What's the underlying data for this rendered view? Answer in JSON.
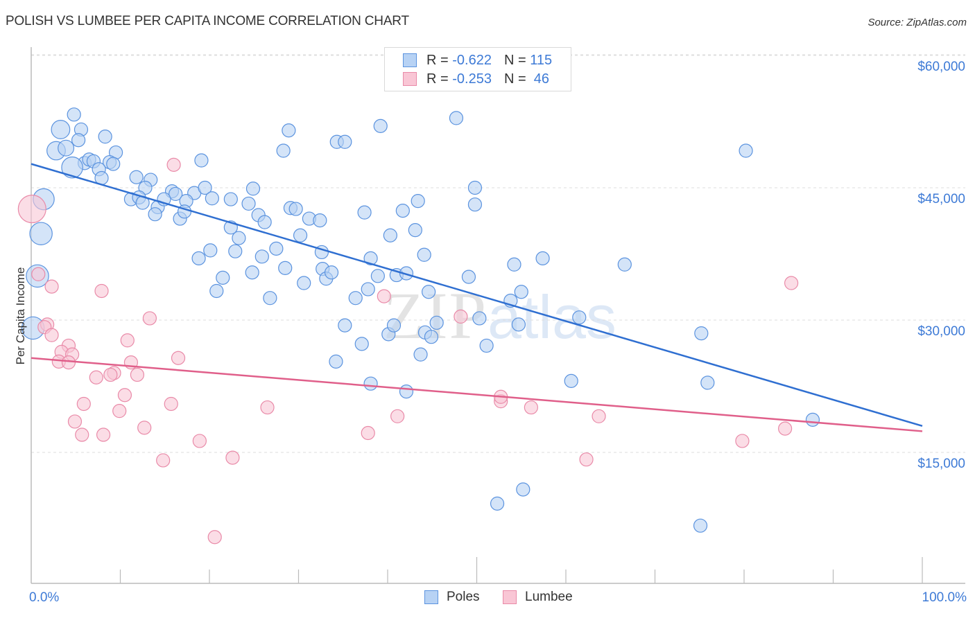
{
  "title": "POLISH VS LUMBEE PER CAPITA INCOME CORRELATION CHART",
  "source": "Source: ZipAtlas.com",
  "watermark": {
    "zip": "ZIP",
    "atlas": "atlas"
  },
  "colors": {
    "poles_fill": "#b7d2f4",
    "poles_stroke": "#5b93df",
    "poles_line": "#2f6fd1",
    "lumbee_fill": "#f9c6d5",
    "lumbee_stroke": "#e98aa8",
    "lumbee_line": "#e05f8a",
    "tick_label": "#3d7ad6"
  },
  "stats_legend": [
    {
      "series": "Poles",
      "r_label": "R =",
      "r_value": "-0.622",
      "n_label": "N =",
      "n_value": "115"
    },
    {
      "series": "Lumbee",
      "r_label": "R =",
      "r_value": "-0.253",
      "n_label": "N =",
      "n_value": " 46"
    }
  ],
  "chart_data": {
    "type": "scatter",
    "title": "POLISH VS LUMBEE PER CAPITA INCOME CORRELATION CHART",
    "xlabel": "",
    "ylabel": "Per Capita Income",
    "xlim": [
      0,
      100
    ],
    "ylim": [
      2000,
      62500
    ],
    "x_tick_labels": [
      {
        "value": 0,
        "label": "0.0%"
      },
      {
        "value": 100,
        "label": "100.0%"
      }
    ],
    "x_minor_ticks": [
      10,
      20,
      30,
      40,
      50,
      60,
      70,
      80,
      90,
      100
    ],
    "y_ticks": [
      {
        "value": 60000,
        "label": "$60,000"
      },
      {
        "value": 45000,
        "label": "$45,000"
      },
      {
        "value": 30000,
        "label": "$30,000"
      },
      {
        "value": 15000,
        "label": "$15,000"
      }
    ],
    "grid": true,
    "legend_position": "bottom-center",
    "series": [
      {
        "name": "Poles",
        "r": -0.622,
        "n": 115,
        "trend": {
          "x0": 0,
          "y0": 47700,
          "x1": 100,
          "y1": 18000
        },
        "points": [
          [
            4.8,
            53.3,
            1
          ],
          [
            3.3,
            51.6,
            1.4
          ],
          [
            5.6,
            51.6,
            1
          ],
          [
            2.8,
            49.2,
            1.4
          ],
          [
            3.9,
            49.5,
            1.2
          ],
          [
            5.3,
            50.4,
            1
          ],
          [
            8.3,
            50.8,
            1
          ],
          [
            6,
            47.8,
            1
          ],
          [
            4.6,
            47.3,
            1.6
          ],
          [
            6.5,
            48.2,
            1
          ],
          [
            7,
            48,
            1
          ],
          [
            9.5,
            49,
            1
          ],
          [
            8.8,
            47.9,
            1
          ],
          [
            7.6,
            47.1,
            1
          ],
          [
            9.2,
            47.7,
            1
          ],
          [
            7.9,
            46.1,
            1
          ],
          [
            11.8,
            46.2,
            1
          ],
          [
            13.4,
            45.9,
            1
          ],
          [
            12.8,
            45,
            1
          ],
          [
            11.2,
            43.7,
            1
          ],
          [
            12.1,
            43.9,
            1
          ],
          [
            12.5,
            43.3,
            1
          ],
          [
            15.8,
            44.6,
            1
          ],
          [
            16.2,
            44.3,
            1
          ],
          [
            18.3,
            44.4,
            1
          ],
          [
            14.2,
            42.8,
            1
          ],
          [
            14.9,
            43.7,
            1
          ],
          [
            17.4,
            43.5,
            1
          ],
          [
            13.9,
            42,
            1
          ],
          [
            16.7,
            41.5,
            1
          ],
          [
            17.2,
            42.3,
            1
          ],
          [
            19.1,
            48.1,
            1
          ],
          [
            19.5,
            45,
            1
          ],
          [
            20.3,
            43.8,
            1
          ],
          [
            22.4,
            43.7,
            1
          ],
          [
            24.4,
            43.2,
            1
          ],
          [
            24.9,
            44.9,
            1
          ],
          [
            25.5,
            41.9,
            1
          ],
          [
            26.2,
            41.1,
            1
          ],
          [
            22.4,
            40.5,
            1
          ],
          [
            23.3,
            39.3,
            1
          ],
          [
            20.1,
            37.9,
            1
          ],
          [
            18.8,
            37,
            1
          ],
          [
            21.5,
            34.8,
            1
          ],
          [
            20.8,
            33.3,
            1
          ],
          [
            24.8,
            35.4,
            1
          ],
          [
            22.9,
            37.8,
            1
          ],
          [
            25.9,
            37.2,
            1
          ],
          [
            27.5,
            38.1,
            1
          ],
          [
            28.5,
            35.9,
            1
          ],
          [
            26.8,
            32.5,
            1
          ],
          [
            28.3,
            49.2,
            1
          ],
          [
            28.9,
            51.5,
            1
          ],
          [
            29.1,
            42.7,
            1
          ],
          [
            29.7,
            42.6,
            1
          ],
          [
            30.2,
            39.6,
            1
          ],
          [
            30.6,
            34.2,
            1
          ],
          [
            31.2,
            41.5,
            1
          ],
          [
            32.4,
            41.3,
            1
          ],
          [
            32.6,
            37.7,
            1
          ],
          [
            32.7,
            35.8,
            1
          ],
          [
            33.1,
            34.7,
            1
          ],
          [
            33.7,
            35.4,
            1
          ],
          [
            34.3,
            50.2,
            1
          ],
          [
            35.2,
            50.2,
            1
          ],
          [
            36.4,
            32.5,
            1
          ],
          [
            37.4,
            42.2,
            1
          ],
          [
            37.8,
            33.5,
            1
          ],
          [
            38.1,
            37,
            1
          ],
          [
            38.9,
            35,
            1
          ],
          [
            39.2,
            52,
            1
          ],
          [
            35.2,
            29.4,
            1
          ],
          [
            34.2,
            25.3,
            1
          ],
          [
            37.1,
            27.3,
            1
          ],
          [
            38.1,
            22.8,
            1
          ],
          [
            40.1,
            28.4,
            1
          ],
          [
            40.7,
            29.4,
            1
          ],
          [
            41,
            35.1,
            1
          ],
          [
            40.3,
            39.6,
            1
          ],
          [
            41.7,
            42.4,
            1
          ],
          [
            42.1,
            35.3,
            1
          ],
          [
            43.1,
            40.2,
            1
          ],
          [
            43.4,
            43.5,
            1
          ],
          [
            44.1,
            37.4,
            1
          ],
          [
            44.6,
            33.2,
            1
          ],
          [
            44.2,
            28.6,
            1
          ],
          [
            43.7,
            26.1,
            1
          ],
          [
            44.9,
            28.1,
            1
          ],
          [
            42.1,
            21.9,
            1
          ],
          [
            45.5,
            29.7,
            1
          ],
          [
            47.7,
            52.9,
            1
          ],
          [
            49.1,
            34.9,
            1
          ],
          [
            49.8,
            43.1,
            1
          ],
          [
            49.8,
            45,
            1
          ],
          [
            50.3,
            30.2,
            1
          ],
          [
            51.1,
            27.1,
            1
          ],
          [
            53.8,
            32.2,
            1
          ],
          [
            54.2,
            36.3,
            1
          ],
          [
            54.7,
            29.5,
            1
          ],
          [
            55,
            33.2,
            1
          ],
          [
            57.4,
            37,
            1
          ],
          [
            60.6,
            23.1,
            1
          ],
          [
            61.5,
            30.3,
            1
          ],
          [
            66.6,
            36.3,
            1
          ],
          [
            75.2,
            28.5,
            1
          ],
          [
            75.9,
            22.9,
            1
          ],
          [
            80.2,
            49.2,
            1
          ],
          [
            87.7,
            18.7,
            1
          ],
          [
            52.3,
            9.2,
            1
          ],
          [
            55.2,
            10.8,
            1
          ],
          [
            75.1,
            6.7,
            1
          ],
          [
            1.4,
            43.7,
            1.6
          ],
          [
            1.1,
            39.8,
            1.7
          ],
          [
            0.7,
            35,
            1.7
          ],
          [
            0.2,
            29.1,
            1.7
          ]
        ]
      },
      {
        "name": "Lumbee",
        "r": -0.253,
        "n": 46,
        "trend": {
          "x0": 0,
          "y0": 25700,
          "x1": 100,
          "y1": 17400
        },
        "points": [
          [
            0.1,
            42.6,
            2.1
          ],
          [
            0.8,
            35.2,
            1
          ],
          [
            2.3,
            33.8,
            1
          ],
          [
            7.9,
            33.3,
            1
          ],
          [
            16,
            47.6,
            1
          ],
          [
            13.3,
            30.2,
            1
          ],
          [
            1.8,
            29.5,
            1
          ],
          [
            1.5,
            29.2,
            1
          ],
          [
            2.3,
            28.3,
            1
          ],
          [
            4.2,
            27.1,
            1
          ],
          [
            3.4,
            26.4,
            1
          ],
          [
            3.1,
            25.3,
            1
          ],
          [
            4.6,
            26.1,
            1
          ],
          [
            4.2,
            25.2,
            1
          ],
          [
            10.8,
            27.7,
            1
          ],
          [
            11.2,
            25.2,
            1
          ],
          [
            7.3,
            23.5,
            1
          ],
          [
            9.3,
            24,
            1
          ],
          [
            8.9,
            23.8,
            1
          ],
          [
            11.9,
            23.8,
            1
          ],
          [
            16.5,
            25.7,
            1
          ],
          [
            5.9,
            20.5,
            1
          ],
          [
            10.5,
            21.5,
            1
          ],
          [
            15.7,
            20.5,
            1
          ],
          [
            4.9,
            18.5,
            1
          ],
          [
            9.9,
            19.7,
            1
          ],
          [
            5.7,
            17,
            1
          ],
          [
            8.1,
            17,
            1
          ],
          [
            12.7,
            17.8,
            1
          ],
          [
            14.8,
            14.1,
            1
          ],
          [
            18.9,
            16.3,
            1
          ],
          [
            22.6,
            14.4,
            1
          ],
          [
            20.6,
            5.4,
            1
          ],
          [
            26.5,
            20.1,
            1
          ],
          [
            37.8,
            17.2,
            1
          ],
          [
            41.1,
            19.1,
            1
          ],
          [
            52.7,
            20.8,
            1
          ],
          [
            52.7,
            21.3,
            1
          ],
          [
            56.1,
            20.1,
            1
          ],
          [
            48.2,
            30.4,
            1
          ],
          [
            39.6,
            32.7,
            1
          ],
          [
            62.3,
            14.2,
            1
          ],
          [
            63.7,
            19.1,
            1
          ],
          [
            79.8,
            16.3,
            1
          ],
          [
            85.3,
            34.2,
            1
          ],
          [
            84.6,
            17.7,
            1
          ]
        ]
      }
    ]
  },
  "bottom_legend": [
    {
      "label": "Poles",
      "series": "Poles"
    },
    {
      "label": "Lumbee",
      "series": "Lumbee"
    }
  ]
}
